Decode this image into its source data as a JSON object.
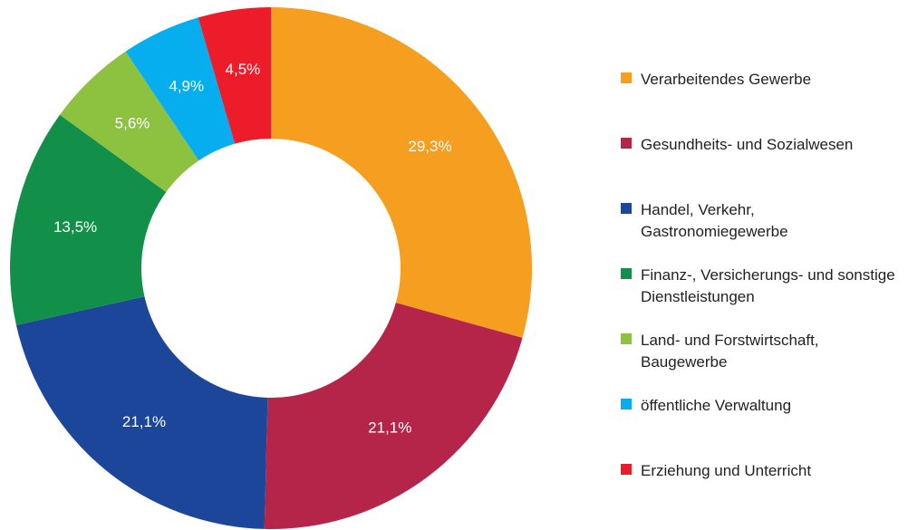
{
  "chart_data": {
    "type": "donut",
    "categories": [
      "Verarbeitendes Gewerbe",
      "Gesundheits- und Sozialwesen",
      "Handel, Verkehr, Gastronomiegewerbe",
      "Finanz-, Versicherungs- und sonstige Dienstleistungen",
      "Land- und Forstwirtschaft, Baugewerbe",
      "öffentliche Verwaltung",
      "Erziehung und Unterricht"
    ],
    "values": [
      29.3,
      21.1,
      21.1,
      13.5,
      5.6,
      4.9,
      4.5
    ],
    "value_labels": [
      "29,3%",
      "21,1%",
      "21,1%",
      "13,5%",
      "5,6%",
      "4,9%",
      "4,5%"
    ],
    "colors": [
      "#f59e1f",
      "#b5254a",
      "#1c4699",
      "#12904a",
      "#8cc240",
      "#06aeef",
      "#ec1c2a"
    ],
    "legend": "right"
  }
}
